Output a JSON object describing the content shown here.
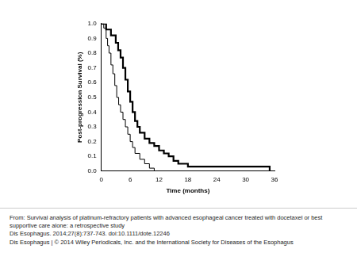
{
  "chart_data": {
    "type": "line",
    "line_style": "step",
    "grid": false,
    "xlabel": "Time (months)",
    "ylabel": "Post-progression Survival (%)",
    "xlim": [
      0,
      36
    ],
    "xticks": [
      0,
      6,
      12,
      18,
      24,
      30,
      36
    ],
    "ylim": [
      0,
      1
    ],
    "yticks": [
      {
        "value": 0,
        "label": "0.0"
      },
      0.1,
      0.2,
      0.3,
      0.4,
      0.5,
      0.6,
      0.7,
      0.8,
      0.9,
      {
        "value": 1,
        "label": "1.0"
      }
    ],
    "series": [
      {
        "color": "#000000",
        "x": [
          0,
          1,
          2,
          3,
          3.5,
          4,
          4.5,
          5,
          5.5,
          6,
          6.5,
          7,
          7.5,
          8,
          9,
          10,
          11,
          12,
          13,
          14,
          15,
          16,
          18,
          35
        ],
        "values": [
          1,
          0.96,
          0.92,
          0.87,
          0.82,
          0.77,
          0.7,
          0.62,
          0.54,
          0.47,
          0.4,
          0.34,
          0.3,
          0.26,
          0.22,
          0.19,
          0.17,
          0.14,
          0.12,
          0.1,
          0.07,
          0.05,
          0.03,
          0
        ]
      },
      {
        "color": "#000000",
        "x": [
          0,
          0.5,
          1,
          1.3,
          1.6,
          2,
          2.4,
          2.8,
          3.2,
          3.6,
          4,
          4.5,
          5,
          5.5,
          6,
          6.5,
          7,
          8,
          9,
          10,
          11
        ],
        "values": [
          1,
          0.97,
          0.9,
          0.85,
          0.8,
          0.72,
          0.66,
          0.58,
          0.5,
          0.45,
          0.4,
          0.35,
          0.3,
          0.25,
          0.2,
          0.16,
          0.12,
          0.08,
          0.05,
          0.02,
          0
        ]
      }
    ]
  },
  "caption": [
    "From: Survival analysis of platinum-refractory patients with advanced esophageal cancer treated with docetaxel or best supportive care alone: a retrospective study",
    "Dis Esophagus. 2014;27(8):737-743. doi:10.1111/dote.12246",
    "Dis Esophagus | © 2014 Wiley Periodicals, Inc. and the International Society for Diseases of the Esophagus"
  ]
}
